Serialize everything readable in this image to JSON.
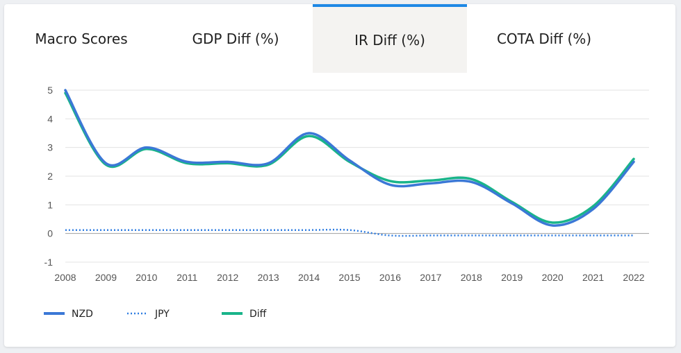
{
  "tabs": [
    {
      "label": "Macro Scores",
      "active": false
    },
    {
      "label": "GDP Diff (%)",
      "active": false
    },
    {
      "label": "IR Diff (%)",
      "active": true
    },
    {
      "label": "COTA Diff (%)",
      "active": false
    }
  ],
  "colors": {
    "accent": "#1e88e5",
    "nzd": "#3b78d6",
    "jpy": "#2f7de1",
    "diff": "#19b48a"
  },
  "chart_data": {
    "type": "line",
    "categories": [
      "2008",
      "2009",
      "2010",
      "2011",
      "2012",
      "2013",
      "2014",
      "2015",
      "2016",
      "2017",
      "2018",
      "2019",
      "2020",
      "2021",
      "2022"
    ],
    "ylim": [
      -1,
      5
    ],
    "yticks": [
      5,
      4,
      3,
      2,
      1,
      0,
      -1
    ],
    "grid": true,
    "legend_position": "bottom-left",
    "series": [
      {
        "name": "NZD",
        "style": "solid",
        "values": [
          5.0,
          2.45,
          3.0,
          2.5,
          2.5,
          2.45,
          3.5,
          2.55,
          1.7,
          1.75,
          1.8,
          1.05,
          0.28,
          0.85,
          2.5
        ]
      },
      {
        "name": "JPY",
        "style": "dotted",
        "values": [
          0.12,
          0.12,
          0.12,
          0.12,
          0.12,
          0.12,
          0.12,
          0.12,
          -0.07,
          -0.07,
          -0.07,
          -0.07,
          -0.07,
          -0.07,
          -0.07
        ]
      },
      {
        "name": "Diff",
        "style": "solid",
        "values": [
          4.9,
          2.4,
          2.95,
          2.45,
          2.45,
          2.4,
          3.4,
          2.5,
          1.83,
          1.85,
          1.9,
          1.1,
          0.38,
          0.95,
          2.6
        ]
      }
    ]
  }
}
